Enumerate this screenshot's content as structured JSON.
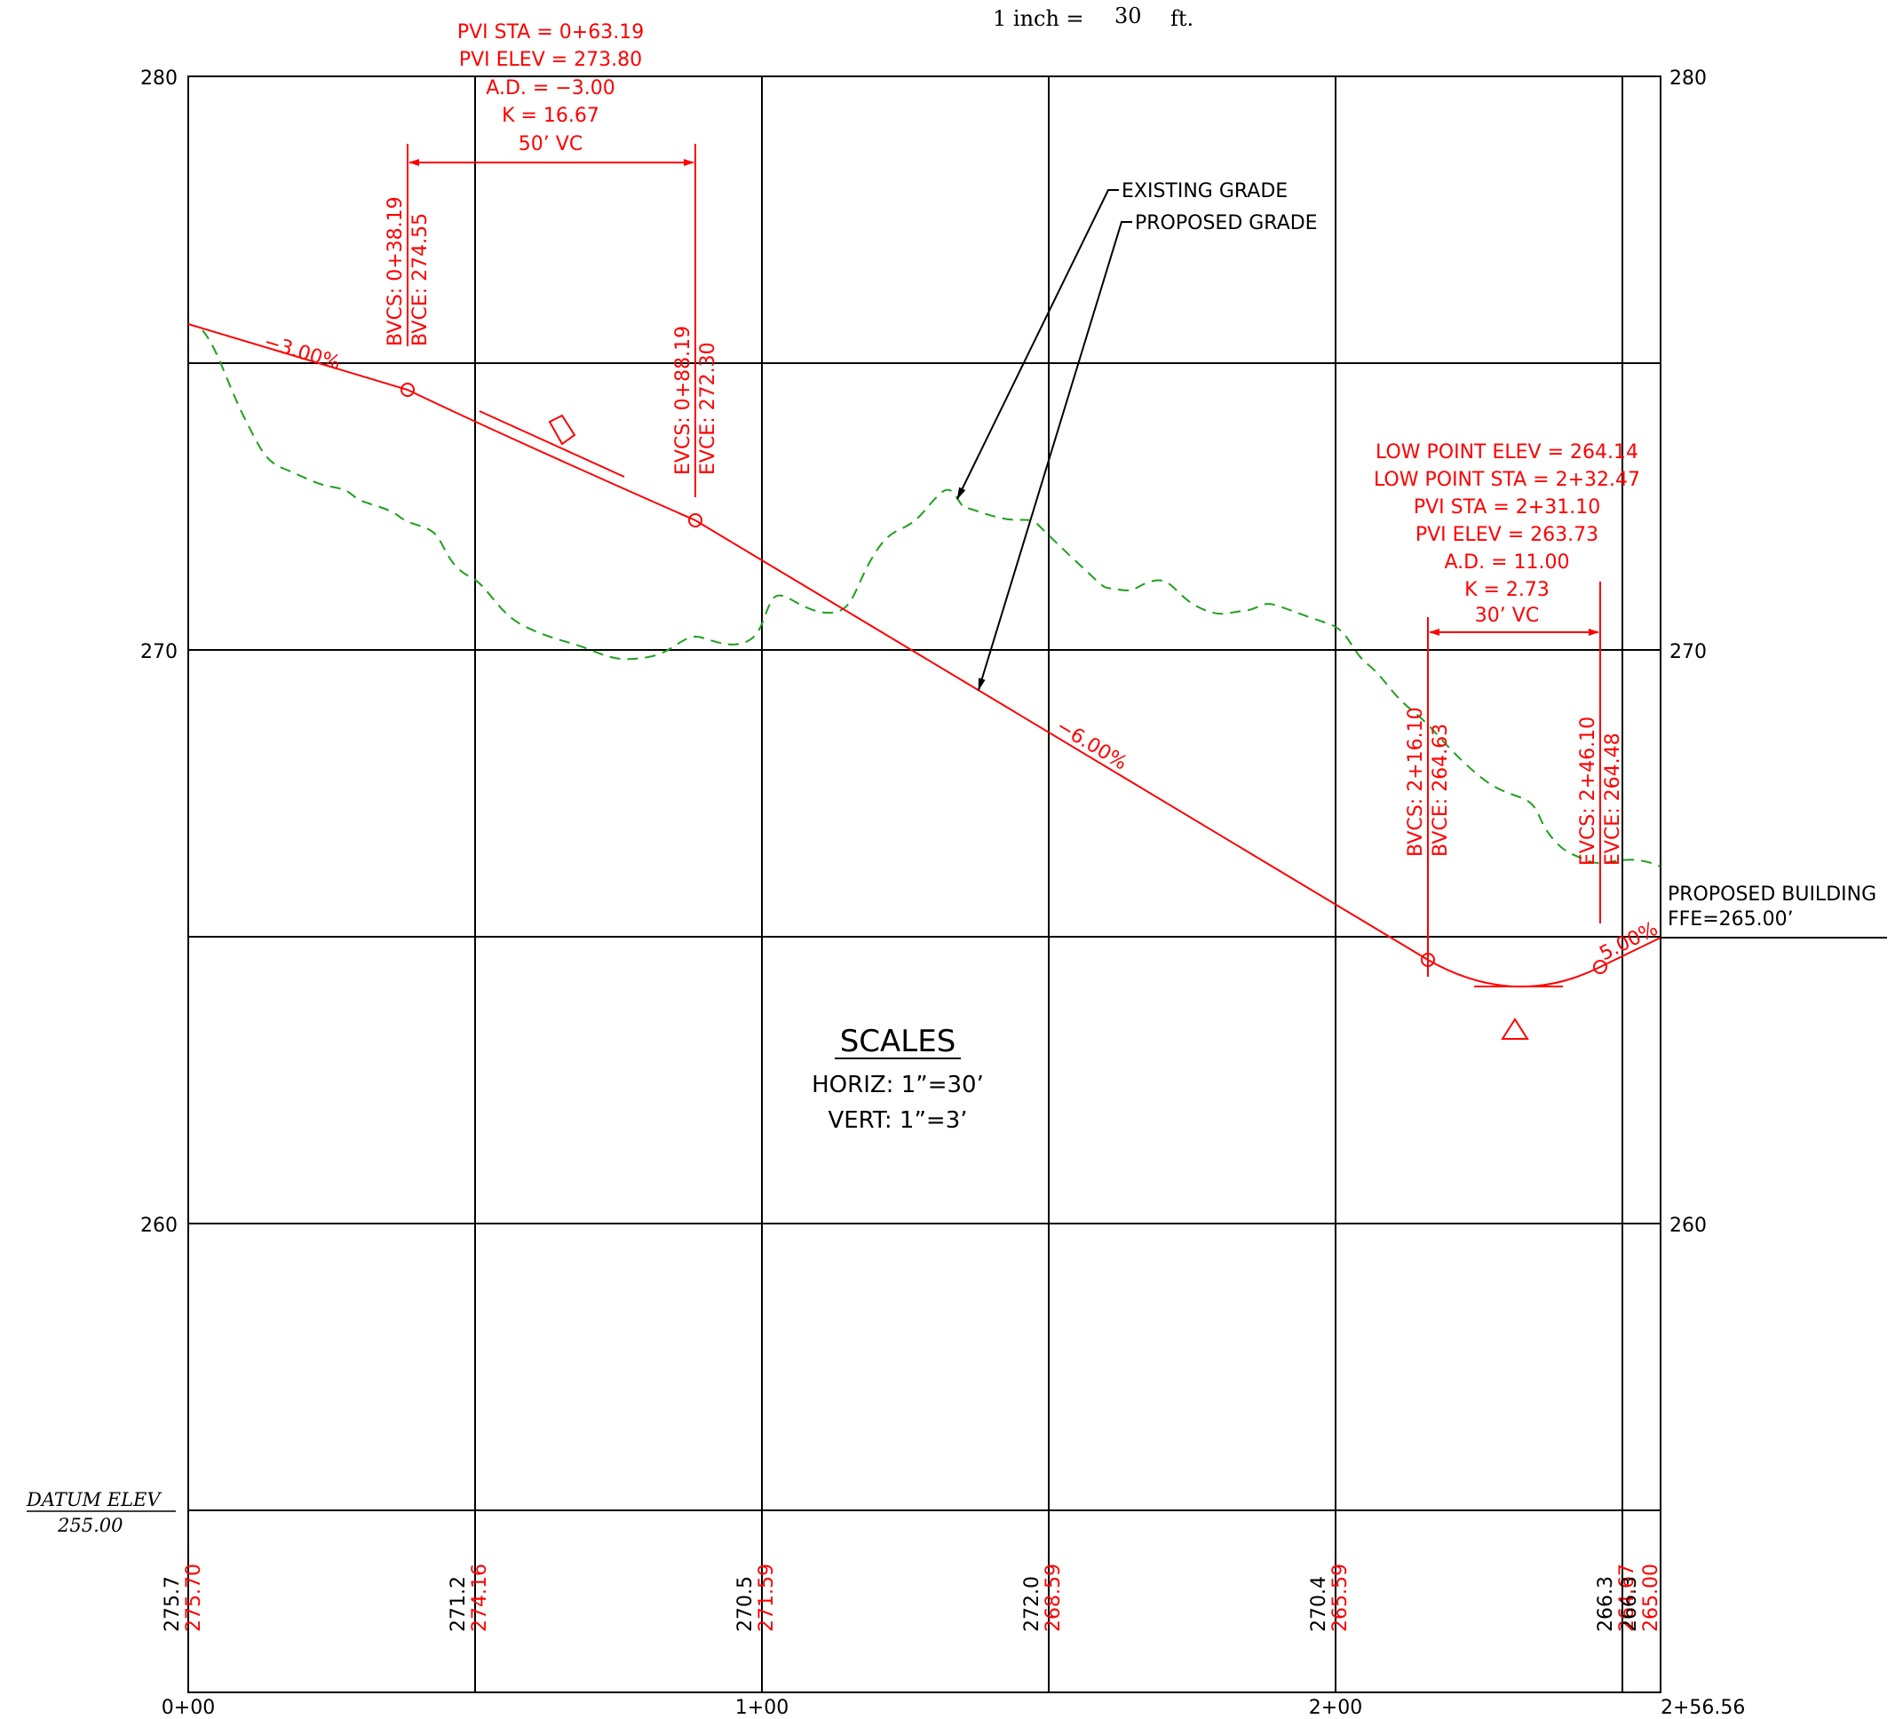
{
  "scale_note": {
    "prefix": "1  inch  =",
    "value": "30",
    "suffix": "ft."
  },
  "colors": {
    "grid": "#000000",
    "proposed": "#ff0000",
    "existing": "#1ea01e",
    "text": "#000000"
  },
  "axes": {
    "elev_labels": [
      "280",
      "270",
      "260"
    ],
    "station_labels": [
      "0+00",
      "1+00",
      "2+00",
      "2+56.56"
    ],
    "datum": {
      "label": "DATUM ELEV",
      "value": "255.00"
    }
  },
  "elevation_table": [
    {
      "existing": "275.7",
      "proposed": "275.70"
    },
    {
      "existing": "271.2",
      "proposed": "274.16"
    },
    {
      "existing": "270.5",
      "proposed": "271.59"
    },
    {
      "existing": "272.0",
      "proposed": "268.59"
    },
    {
      "existing": "270.4",
      "proposed": "265.59"
    },
    {
      "existing": "266.3",
      "proposed": "264.67"
    },
    {
      "existing": "266.3",
      "proposed": "265.00"
    }
  ],
  "curve1": {
    "pvi_sta": "PVI STA = 0+63.19",
    "pvi_elev": "PVI ELEV = 273.80",
    "ad": "A.D. = −3.00",
    "k": "K = 16.67",
    "vc": "50’ VC",
    "bvcs": "BVCS: 0+38.19",
    "bvce": "BVCE: 274.55",
    "evcs": "EVCS: 0+88.19",
    "evce": "EVCE: 272.30"
  },
  "curve2": {
    "low_elev": "LOW POINT ELEV = 264.14",
    "low_sta": "LOW POINT STA = 2+32.47",
    "pvi_sta": "PVI STA = 2+31.10",
    "pvi_elev": "PVI ELEV = 263.73",
    "ad": "A.D. = 11.00",
    "k": "K = 2.73",
    "vc": "30’ VC",
    "bvcs": "BVCS: 2+16.10",
    "bvce": "BVCE: 264.63",
    "evcs": "EVCS: 2+46.10",
    "evce": "EVCE: 264.48"
  },
  "grades": {
    "g1": "−3.00%",
    "g2": "−6.00%",
    "g3": "5.00%"
  },
  "leaders": {
    "existing": "EXISTING GRADE",
    "proposed": "PROPOSED GRADE"
  },
  "building": {
    "line1": "PROPOSED BUILDING",
    "line2": "FFE=265.00’"
  },
  "scales": {
    "title": "SCALES",
    "horiz": "HORIZ:  1”=30’",
    "vert": "VERT:  1”=3’"
  }
}
